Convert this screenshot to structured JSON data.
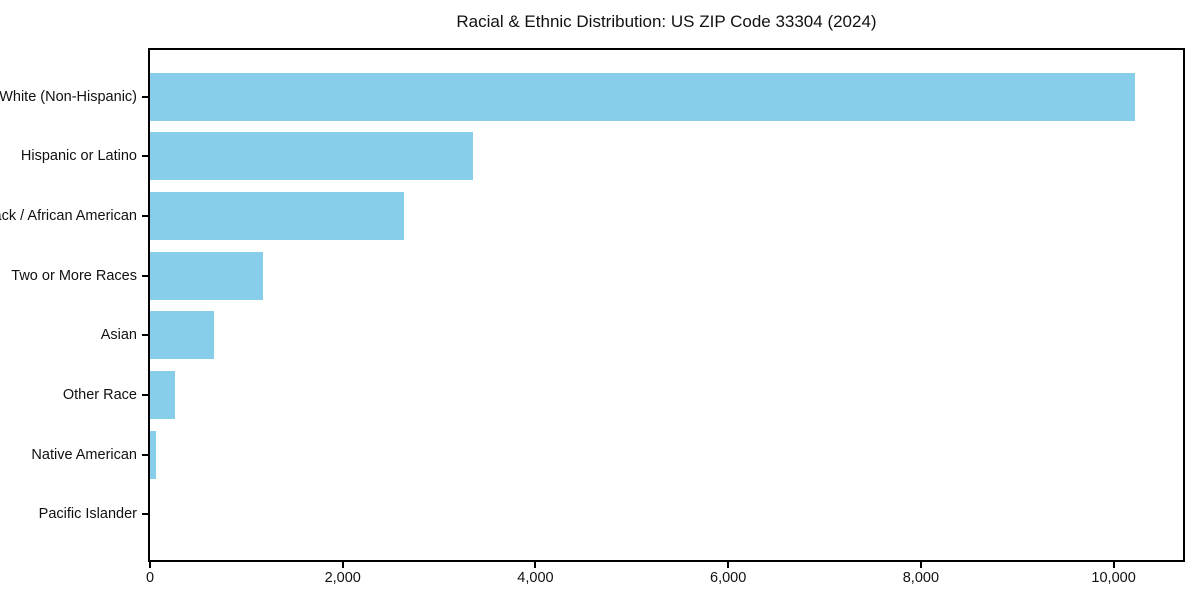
{
  "title": "Racial & Ethnic Distribution: US ZIP Code 33304 (2024)",
  "colors": {
    "bar": "#87CEEB",
    "spine": "#000000",
    "background": "#FFFFFF",
    "text": "#111111"
  },
  "chart_data": {
    "type": "bar",
    "orientation": "horizontal",
    "title": "Racial & Ethnic Distribution: US ZIP Code 33304 (2024)",
    "categories": [
      "White (Non-Hispanic)",
      "Hispanic or Latino",
      "Black / African American",
      "Two or More Races",
      "Asian",
      "Other Race",
      "Native American",
      "Pacific Islander"
    ],
    "values": [
      10220,
      3350,
      2640,
      1170,
      660,
      260,
      60,
      0
    ],
    "xlabel": "",
    "ylabel": "",
    "xlim": [
      0,
      10720
    ],
    "xticks": [
      0,
      2000,
      4000,
      6000,
      8000,
      10000
    ],
    "xtick_labels": [
      "0",
      "2,000",
      "4,000",
      "6,000",
      "8,000",
      "10,000"
    ],
    "grid": false,
    "legend": null,
    "bar_color": "#87CEEB"
  }
}
